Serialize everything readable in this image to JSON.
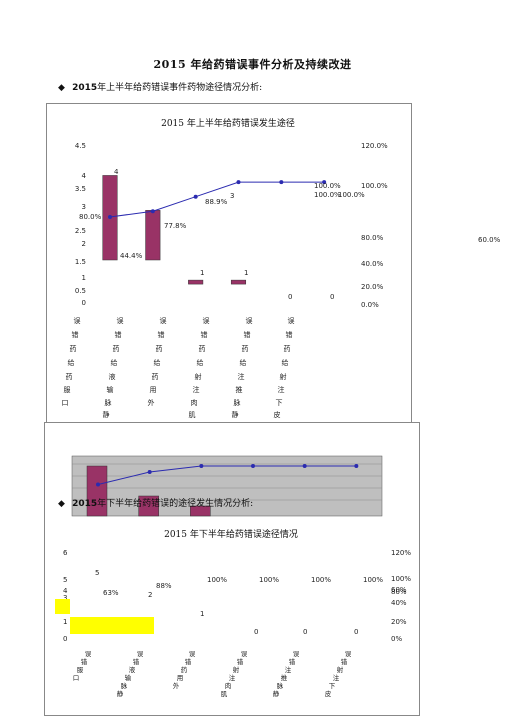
{
  "doc_title": "2015 年给药错误事件分析及持续改进",
  "section1": {
    "bullet": "◆",
    "year": "2015",
    "text": "年上半年给药错误事件药物途径情况分析:"
  },
  "section2": {
    "bullet": "◆",
    "year": "2015",
    "text": "年下半年给药错误的途径发生情况分析:"
  },
  "chart_data": [
    {
      "type": "bar",
      "title": "2015 年上半年给药错误发生途径",
      "categories": [
        "口服错误",
        "输液错误",
        "外用药错误",
        "肌注错误",
        "静推错误",
        "皮下注射错误"
      ],
      "values": [
        4,
        3,
        1,
        1,
        0,
        0
      ],
      "cumulative_pct": [
        44.4,
        77.8,
        88.9,
        100.0,
        100.0,
        100.0
      ],
      "bar_labels": [
        "4",
        "3",
        "1",
        "1",
        "0",
        "0"
      ],
      "pct_labels": [
        "44.4%",
        "77.8%",
        "88.9%",
        "100.0%",
        "100.0%",
        "100.0%"
      ],
      "y_ticks": [
        "4.5",
        "4",
        "3.5",
        "3",
        "2.5",
        "2",
        "1.5",
        "1",
        "0.5",
        "0"
      ],
      "y2_ticks": [
        "120.0%",
        "100.0%",
        "80.0%",
        "60.0%",
        "40.0%",
        "20.0%",
        "0.0%"
      ],
      "ylim": [
        0,
        4.5
      ],
      "y2lim": [
        0,
        120
      ],
      "x_label_columns": [
        [
          "误",
          "错",
          "药",
          "给",
          "药",
          "服",
          "口"
        ],
        [
          "误",
          "错",
          "药",
          "给",
          "液",
          "输",
          "脉",
          "静"
        ],
        [
          "误",
          "错",
          "药",
          "给",
          "药",
          "用",
          "外"
        ],
        [
          "误",
          "错",
          "药",
          "给",
          "射",
          "注",
          "肉",
          "肌"
        ],
        [
          "误",
          "错",
          "药",
          "给",
          "注",
          "推",
          "脉",
          "静"
        ],
        [
          "误",
          "错",
          "药",
          "给",
          "射",
          "注",
          "下",
          "皮"
        ]
      ]
    },
    {
      "type": "bar",
      "title": "2015 年下半年给药错误途径情况",
      "categories": [
        "口服错误",
        "静脉输液错误",
        "外用药错误",
        "肌肉注射错误",
        "静脉推注错误",
        "皮下注射错误"
      ],
      "values": [
        5,
        2,
        1,
        0,
        0,
        0
      ],
      "cumulative_pct": [
        63,
        88,
        100,
        100,
        100,
        100
      ],
      "bar_labels": [
        "5",
        "2",
        "1",
        "0",
        "0",
        "0"
      ],
      "pct_labels": [
        "63%",
        "88%",
        "100%",
        "100%",
        "100%",
        "100%"
      ],
      "y_ticks": [
        "6",
        "5",
        "4",
        "3",
        "2",
        "1",
        "0"
      ],
      "y2_ticks": [
        "120%",
        "100%",
        "80%",
        "60%",
        "40%",
        "20%",
        "0%"
      ],
      "ylim": [
        0,
        6
      ],
      "y2lim": [
        0,
        120
      ]
    }
  ],
  "colors": {
    "bar": "#993366",
    "line": "#2b2bb0",
    "plot_bg": "#bfbfbf",
    "highlight": "#ffff00"
  }
}
